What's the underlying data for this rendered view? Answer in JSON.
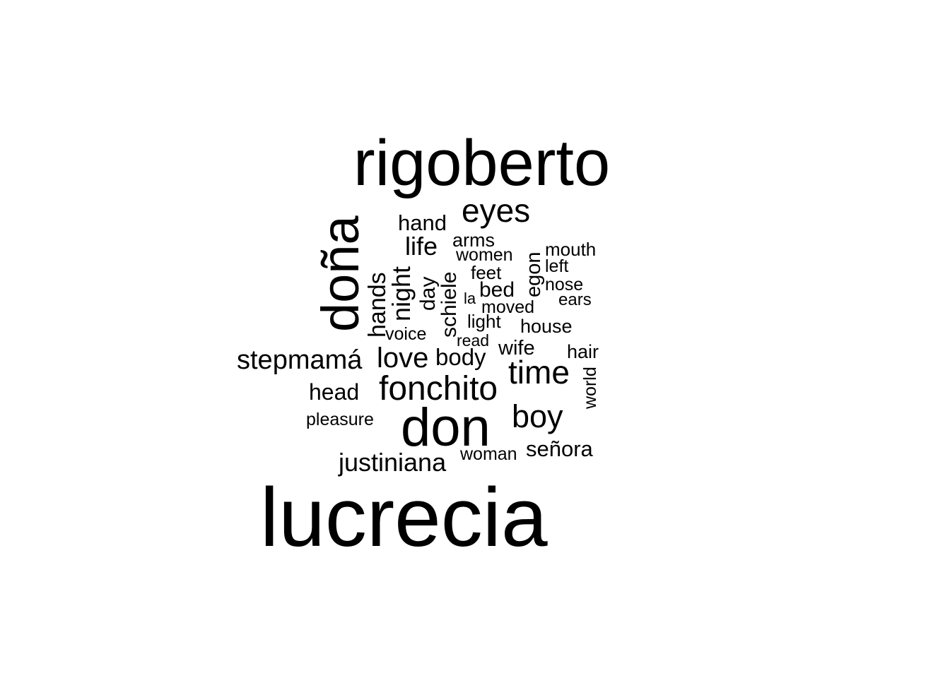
{
  "colors": {
    "background": "#ffffff",
    "text": "#000000"
  },
  "words": [
    {
      "id": "lucrecia",
      "text": "lucrecia"
    },
    {
      "id": "rigoberto",
      "text": "rigoberto"
    },
    {
      "id": "dona",
      "text": "doña"
    },
    {
      "id": "don",
      "text": "don"
    },
    {
      "id": "fonchito",
      "text": "fonchito"
    },
    {
      "id": "eyes",
      "text": "eyes"
    },
    {
      "id": "time",
      "text": "time"
    },
    {
      "id": "boy",
      "text": "boy"
    },
    {
      "id": "stepmama",
      "text": "stepmamá"
    },
    {
      "id": "love",
      "text": "love"
    },
    {
      "id": "justiniana",
      "text": "justiniana"
    },
    {
      "id": "night",
      "text": "night"
    },
    {
      "id": "life",
      "text": "life"
    },
    {
      "id": "body",
      "text": "body"
    },
    {
      "id": "hands",
      "text": "hands"
    },
    {
      "id": "head",
      "text": "head"
    },
    {
      "id": "senora",
      "text": "señora"
    },
    {
      "id": "hand",
      "text": "hand"
    },
    {
      "id": "schiele",
      "text": "schiele"
    },
    {
      "id": "day",
      "text": "day"
    },
    {
      "id": "bed",
      "text": "bed"
    },
    {
      "id": "wife",
      "text": "wife"
    },
    {
      "id": "egon",
      "text": "egon"
    },
    {
      "id": "arms",
      "text": "arms"
    },
    {
      "id": "house",
      "text": "house"
    },
    {
      "id": "hair",
      "text": "hair"
    },
    {
      "id": "mouth",
      "text": "mouth"
    },
    {
      "id": "feet",
      "text": "feet"
    },
    {
      "id": "women",
      "text": "women"
    },
    {
      "id": "world",
      "text": "world"
    },
    {
      "id": "light",
      "text": "light"
    },
    {
      "id": "voice",
      "text": "voice"
    },
    {
      "id": "woman",
      "text": "woman"
    },
    {
      "id": "pleasure",
      "text": "pleasure"
    },
    {
      "id": "moved",
      "text": "moved"
    },
    {
      "id": "left",
      "text": "left"
    },
    {
      "id": "nose",
      "text": "nose"
    },
    {
      "id": "ears",
      "text": "ears"
    },
    {
      "id": "read",
      "text": "read"
    },
    {
      "id": "la",
      "text": "la"
    }
  ]
}
